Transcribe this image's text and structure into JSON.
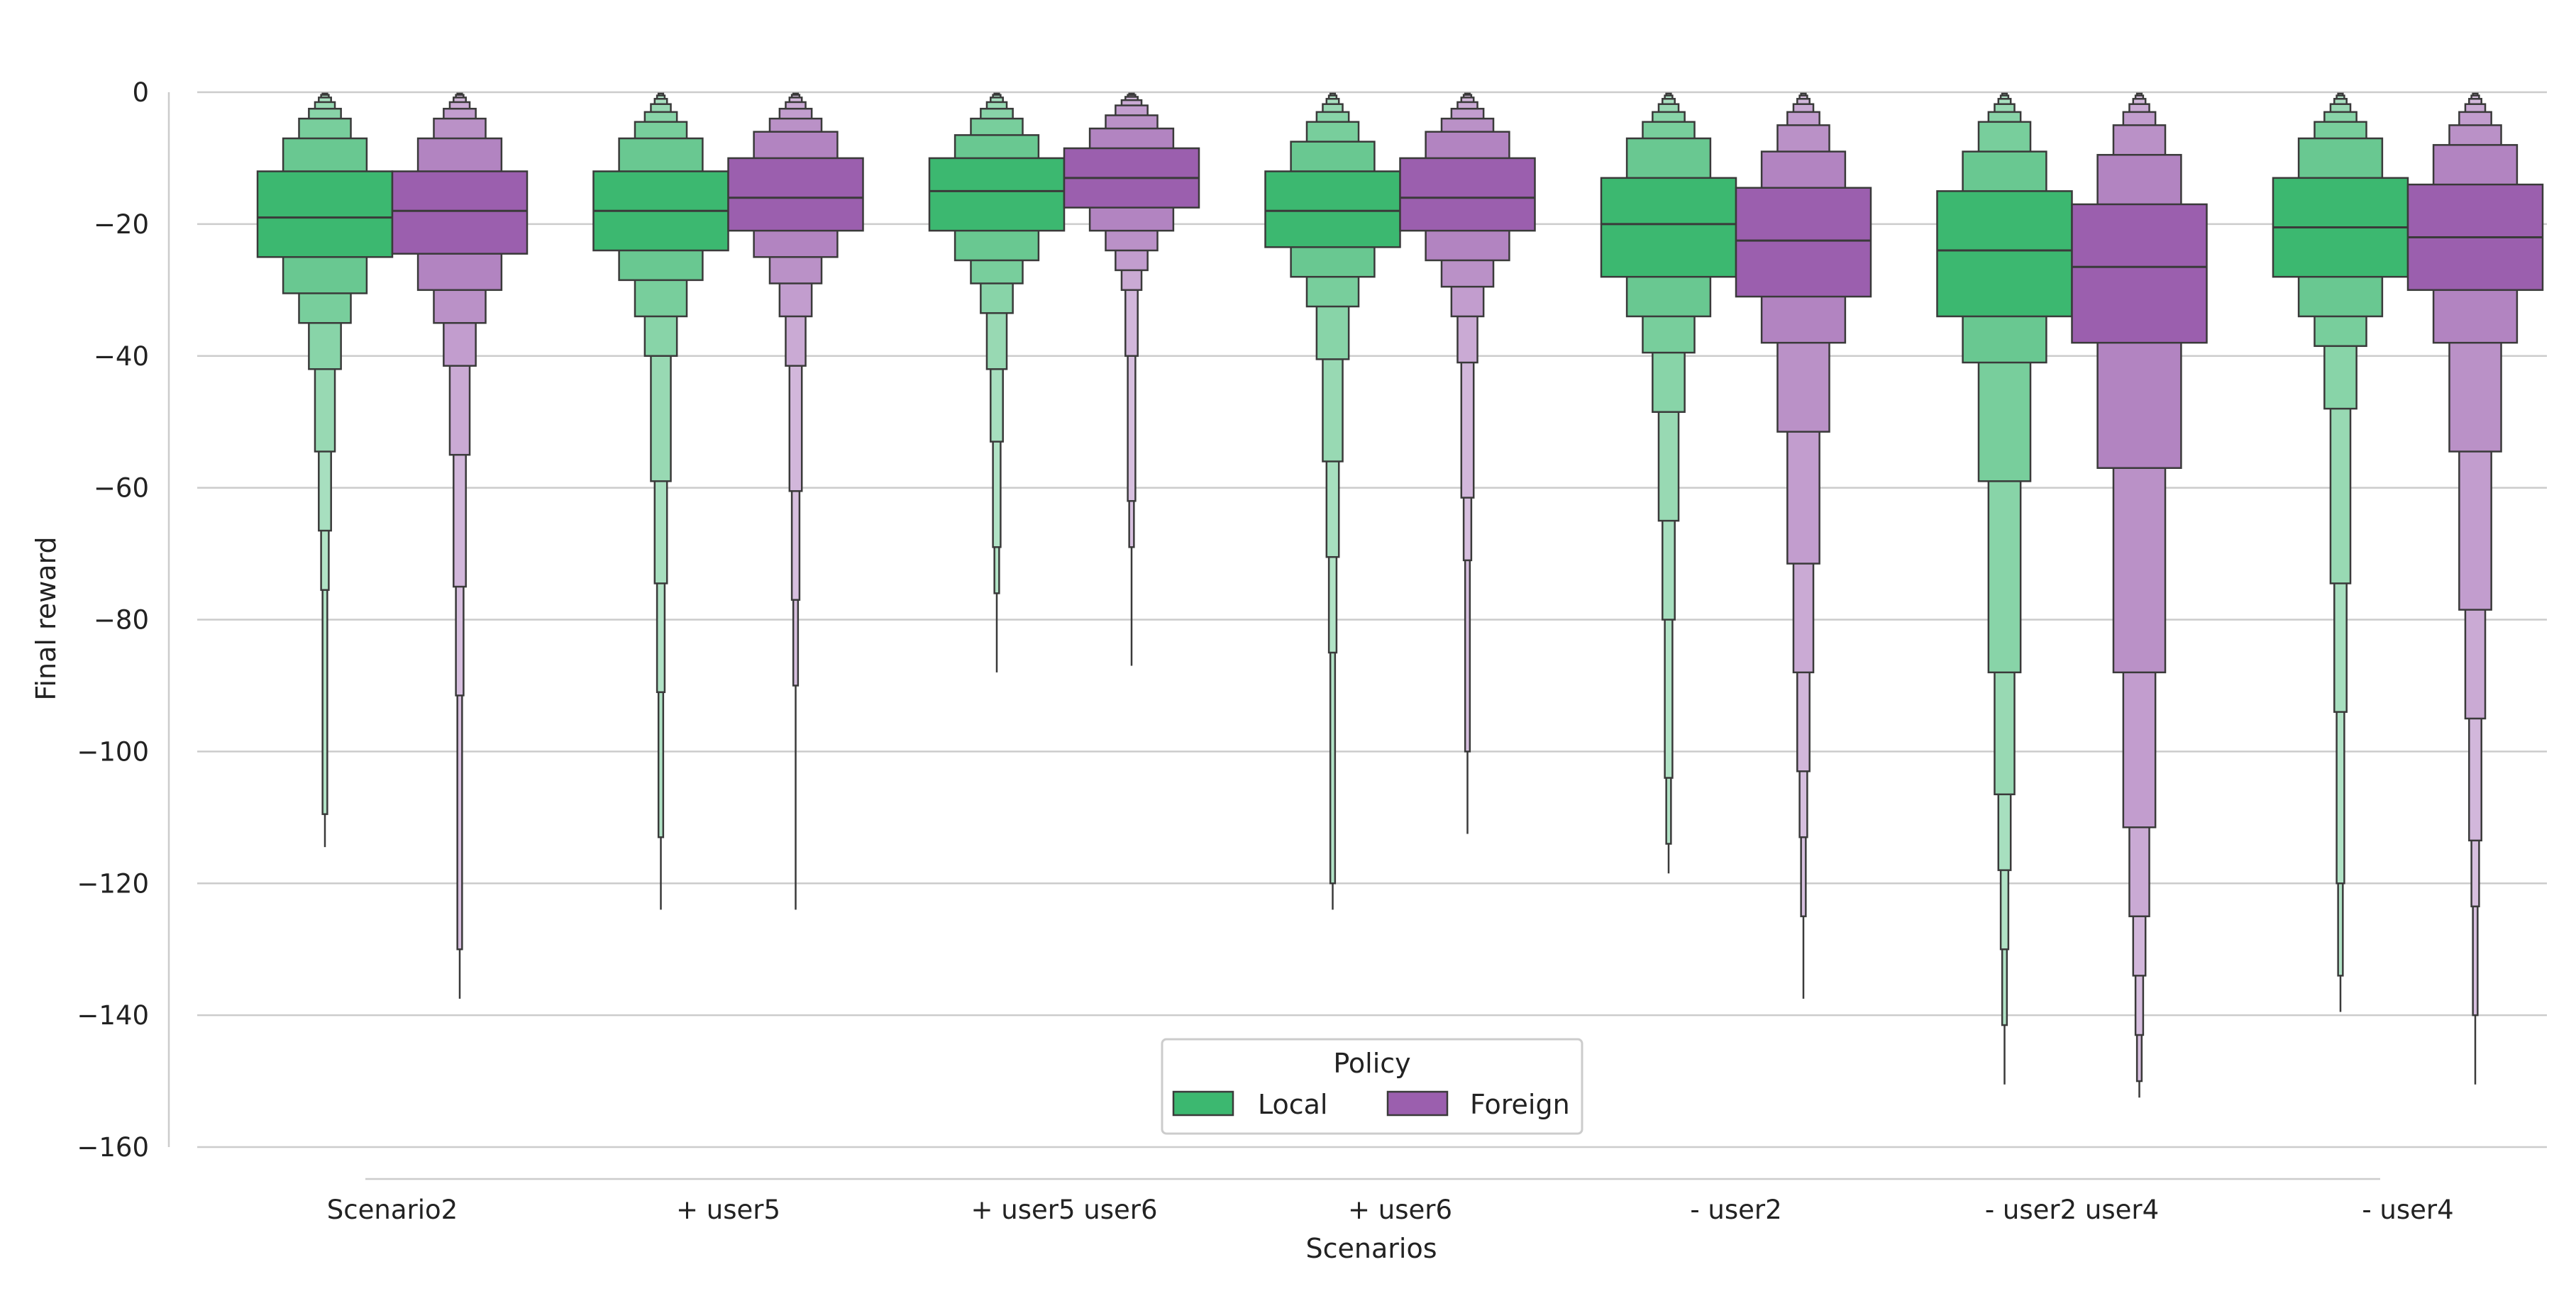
{
  "chart_data": {
    "type": "boxenplot",
    "xlabel": "Scenarios",
    "ylabel": "Final reward",
    "ylim": [
      -160,
      0
    ],
    "yticks": [
      0,
      -20,
      -40,
      -60,
      -80,
      -100,
      -120,
      -140,
      -160
    ],
    "grid": "horizontal",
    "categories": [
      "Scenario2",
      "+ user5",
      "+ user5 user6",
      "+ user6",
      "- user2",
      "- user2 user4",
      "- user4"
    ],
    "legend": {
      "title": "Policy",
      "placement": "bottom-center",
      "entries": [
        "Local",
        "Foreign"
      ]
    },
    "colors": {
      "Local": "#3cb870",
      "Foreign": "#9b5fae",
      "edge": "#3a3a3a",
      "grid": "#cccccc"
    },
    "series": [
      {
        "name": "Local",
        "groups": [
          {
            "median": -19,
            "levels": [
              [
                -12,
                -25
              ],
              [
                -7,
                -30.5
              ],
              [
                -4,
                -35
              ],
              [
                -2.5,
                -42
              ],
              [
                -1.5,
                -54.5
              ],
              [
                -0.8,
                -66.5
              ],
              [
                -0.4,
                -75.5
              ],
              [
                -0.2,
                -109.5
              ]
            ],
            "min": -114.5
          },
          {
            "median": -18,
            "levels": [
              [
                -12,
                -24
              ],
              [
                -7,
                -28.5
              ],
              [
                -4.5,
                -34
              ],
              [
                -3,
                -40
              ],
              [
                -1.8,
                -59
              ],
              [
                -1,
                -74.5
              ],
              [
                -0.5,
                -91
              ],
              [
                -0.2,
                -113
              ]
            ],
            "min": -124
          },
          {
            "median": -15,
            "levels": [
              [
                -10,
                -21
              ],
              [
                -6.5,
                -25.5
              ],
              [
                -4,
                -29
              ],
              [
                -2.5,
                -33.5
              ],
              [
                -1.5,
                -42
              ],
              [
                -0.8,
                -53
              ],
              [
                -0.4,
                -69
              ],
              [
                -0.2,
                -76
              ]
            ],
            "min": -88
          },
          {
            "median": -18,
            "levels": [
              [
                -12,
                -23.5
              ],
              [
                -7.5,
                -28
              ],
              [
                -4.5,
                -32.5
              ],
              [
                -3,
                -40.5
              ],
              [
                -1.8,
                -56
              ],
              [
                -1,
                -70.5
              ],
              [
                -0.5,
                -85
              ],
              [
                -0.2,
                -120
              ]
            ],
            "min": -124
          },
          {
            "median": -20,
            "levels": [
              [
                -13,
                -28
              ],
              [
                -7,
                -34
              ],
              [
                -4.5,
                -39.5
              ],
              [
                -3,
                -48.5
              ],
              [
                -1.8,
                -65
              ],
              [
                -1,
                -80
              ],
              [
                -0.5,
                -104
              ],
              [
                -0.2,
                -114
              ]
            ],
            "min": -118.5
          },
          {
            "median": -24,
            "levels": [
              [
                -15,
                -34
              ],
              [
                -9,
                -41
              ],
              [
                -4.5,
                -59
              ],
              [
                -3,
                -88
              ],
              [
                -1.8,
                -106.5
              ],
              [
                -1,
                -118
              ],
              [
                -0.5,
                -130
              ],
              [
                -0.2,
                -141.5
              ]
            ],
            "min": -150.5
          },
          {
            "median": -20.5,
            "levels": [
              [
                -13,
                -28
              ],
              [
                -7,
                -34
              ],
              [
                -4.5,
                -38.5
              ],
              [
                -3,
                -48
              ],
              [
                -1.8,
                -74.5
              ],
              [
                -1,
                -94
              ],
              [
                -0.5,
                -120
              ],
              [
                -0.2,
                -134
              ]
            ],
            "min": -139.5
          }
        ]
      },
      {
        "name": "Foreign",
        "groups": [
          {
            "median": -18,
            "levels": [
              [
                -12,
                -24.5
              ],
              [
                -7,
                -30
              ],
              [
                -4,
                -35
              ],
              [
                -2.5,
                -41.5
              ],
              [
                -1.5,
                -55
              ],
              [
                -0.8,
                -75
              ],
              [
                -0.4,
                -91.5
              ],
              [
                -0.2,
                -130
              ]
            ],
            "min": -137.5
          },
          {
            "median": -16,
            "levels": [
              [
                -10,
                -21
              ],
              [
                -6,
                -25
              ],
              [
                -4,
                -29
              ],
              [
                -2.5,
                -34
              ],
              [
                -1.5,
                -41.5
              ],
              [
                -0.8,
                -60.5
              ],
              [
                -0.4,
                -77
              ],
              [
                -0.2,
                -90
              ]
            ],
            "min": -124
          },
          {
            "median": -13,
            "levels": [
              [
                -8.5,
                -17.5
              ],
              [
                -5.5,
                -21
              ],
              [
                -3.5,
                -24
              ],
              [
                -2,
                -27
              ],
              [
                -1.2,
                -30
              ],
              [
                -0.7,
                -40
              ],
              [
                -0.4,
                -62
              ],
              [
                -0.2,
                -69
              ]
            ],
            "min": -87
          },
          {
            "median": -16,
            "levels": [
              [
                -10,
                -21
              ],
              [
                -6,
                -25.5
              ],
              [
                -4,
                -29.5
              ],
              [
                -2.5,
                -34
              ],
              [
                -1.5,
                -41
              ],
              [
                -0.8,
                -61.5
              ],
              [
                -0.4,
                -71
              ],
              [
                -0.2,
                -100
              ]
            ],
            "min": -112.5
          },
          {
            "median": -22.5,
            "levels": [
              [
                -14.5,
                -31
              ],
              [
                -9,
                -38
              ],
              [
                -5,
                -51.5
              ],
              [
                -3,
                -71.5
              ],
              [
                -1.8,
                -88
              ],
              [
                -1,
                -103
              ],
              [
                -0.5,
                -113
              ],
              [
                -0.2,
                -125
              ]
            ],
            "min": -137.5
          },
          {
            "median": -26.5,
            "levels": [
              [
                -17,
                -38
              ],
              [
                -9.5,
                -57
              ],
              [
                -5,
                -88
              ],
              [
                -3,
                -111.5
              ],
              [
                -1.8,
                -125
              ],
              [
                -1,
                -134
              ],
              [
                -0.5,
                -143
              ],
              [
                -0.2,
                -150
              ]
            ],
            "min": -152.5
          },
          {
            "median": -22,
            "levels": [
              [
                -14,
                -30
              ],
              [
                -8,
                -38
              ],
              [
                -5,
                -54.5
              ],
              [
                -3,
                -78.5
              ],
              [
                -1.8,
                -95
              ],
              [
                -1,
                -113.5
              ],
              [
                -0.5,
                -123.5
              ],
              [
                -0.2,
                -140
              ]
            ],
            "min": -150.5
          }
        ]
      }
    ]
  }
}
